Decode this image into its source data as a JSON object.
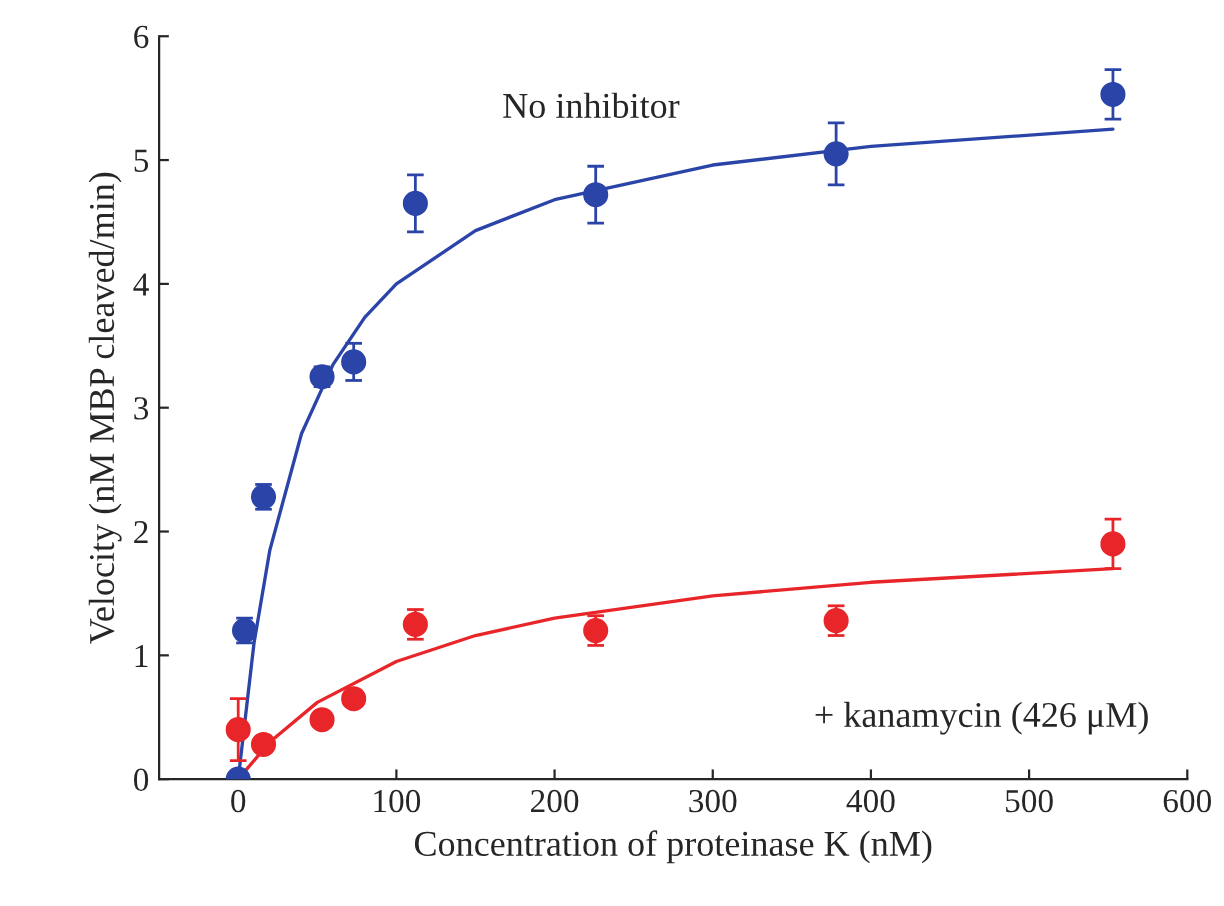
{
  "chart_data": {
    "type": "scatter",
    "xlabel": "Concentration of proteinase K (nM)",
    "ylabel": "Velocity (nM MBP cleaved/min)",
    "xlim": [
      -50,
      600
    ],
    "ylim": [
      0,
      6
    ],
    "xticks": [
      0,
      100,
      200,
      300,
      400,
      500,
      600
    ],
    "yticks": [
      0,
      1,
      2,
      3,
      4,
      5,
      6
    ],
    "grid": false,
    "series": [
      {
        "marker": "circle",
        "color": "#2b44a8",
        "x": [
          0,
          4,
          16,
          53,
          73,
          112,
          226,
          378,
          553
        ],
        "values": [
          0,
          1.2,
          2.28,
          3.25,
          3.37,
          4.65,
          4.72,
          5.05,
          5.53
        ],
        "errors": [
          null,
          0.1,
          0.1,
          0.08,
          0.15,
          0.23,
          0.23,
          0.25,
          0.2
        ]
      },
      {
        "type": "line",
        "marker": "none",
        "color": "#2b44a8",
        "x": [
          0,
          10,
          20,
          40,
          60,
          80,
          100,
          150,
          200,
          300,
          400,
          553
        ],
        "values": [
          0,
          1.1,
          1.85,
          2.79,
          3.35,
          3.73,
          4.0,
          4.43,
          4.68,
          4.96,
          5.11,
          5.25
        ]
      },
      {
        "marker": "circle",
        "color": "#e8262a",
        "x": [
          0,
          16,
          53,
          73,
          112,
          226,
          378,
          553
        ],
        "values": [
          0.4,
          0.28,
          0.48,
          0.65,
          1.25,
          1.2,
          1.28,
          1.9
        ],
        "errors": [
          0.25,
          null,
          null,
          0.06,
          0.12,
          0.12,
          0.12,
          0.2
        ]
      },
      {
        "type": "line",
        "marker": "none",
        "color": "#e8262a",
        "x": [
          0,
          20,
          50,
          100,
          150,
          200,
          300,
          400,
          553
        ],
        "values": [
          0,
          0.3,
          0.62,
          0.95,
          1.16,
          1.3,
          1.48,
          1.59,
          1.7
        ]
      }
    ],
    "annotations": [
      "No inhibitor",
      "+ kanamycin (426 μM)"
    ]
  }
}
